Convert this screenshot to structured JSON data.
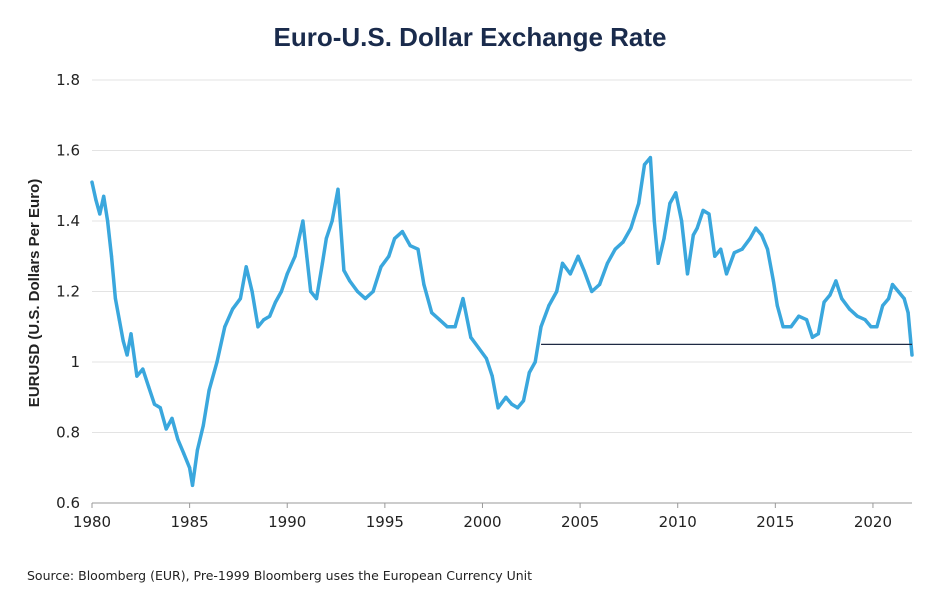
{
  "chart_data": {
    "type": "line",
    "title": "Euro-U.S. Dollar Exchange Rate",
    "ylabel": "EURUSD (U.S. Dollars Per Euro)",
    "xlabel": "",
    "xlim": [
      1980,
      2022
    ],
    "ylim": [
      0.6,
      1.8
    ],
    "xticks": [
      "1980",
      "1985",
      "1990",
      "1995",
      "2000",
      "2005",
      "2010",
      "2015",
      "2020"
    ],
    "yticks": [
      "0.6",
      "0.8",
      "1",
      "1.2",
      "1.4",
      "1.6",
      "1.8"
    ],
    "grid": "horizontal",
    "series": [
      {
        "color": "#3aa7dd",
        "x": [
          1980.0,
          1980.2,
          1980.4,
          1980.6,
          1980.8,
          1981.0,
          1981.2,
          1981.4,
          1981.6,
          1981.8,
          1982.0,
          1982.3,
          1982.6,
          1982.9,
          1983.2,
          1983.5,
          1983.8,
          1984.1,
          1984.4,
          1984.7,
          1985.0,
          1985.15,
          1985.4,
          1985.7,
          1986.0,
          1986.4,
          1986.8,
          1987.2,
          1987.6,
          1987.9,
          1988.2,
          1988.5,
          1988.8,
          1989.1,
          1989.4,
          1989.7,
          1990.0,
          1990.4,
          1990.8,
          1991.0,
          1991.2,
          1991.5,
          1991.8,
          1992.0,
          1992.3,
          1992.6,
          1992.9,
          1993.2,
          1993.6,
          1994.0,
          1994.4,
          1994.8,
          1995.2,
          1995.5,
          1995.9,
          1996.3,
          1996.7,
          1997.0,
          1997.4,
          1997.8,
          1998.2,
          1998.6,
          1999.0,
          1999.4,
          1999.8,
          2000.2,
          2000.5,
          2000.8,
          2001.2,
          2001.5,
          2001.8,
          2002.1,
          2002.4,
          2002.7,
          2003.0,
          2003.4,
          2003.8,
          2004.1,
          2004.5,
          2004.9,
          2005.2,
          2005.6,
          2006.0,
          2006.4,
          2006.8,
          2007.2,
          2007.6,
          2008.0,
          2008.3,
          2008.6,
          2008.8,
          2009.0,
          2009.3,
          2009.6,
          2009.9,
          2010.2,
          2010.5,
          2010.8,
          2011.0,
          2011.3,
          2011.6,
          2011.9,
          2012.2,
          2012.5,
          2012.9,
          2013.3,
          2013.7,
          2014.0,
          2014.3,
          2014.6,
          2014.9,
          2015.1,
          2015.4,
          2015.8,
          2016.2,
          2016.6,
          2016.9,
          2017.2,
          2017.5,
          2017.8,
          2018.1,
          2018.4,
          2018.8,
          2019.2,
          2019.6,
          2019.9,
          2020.2,
          2020.5,
          2020.8,
          2021.0,
          2021.3,
          2021.6,
          2021.8,
          2022.0
        ],
        "y": [
          1.51,
          1.46,
          1.42,
          1.47,
          1.4,
          1.3,
          1.18,
          1.12,
          1.06,
          1.02,
          1.08,
          0.96,
          0.98,
          0.93,
          0.88,
          0.87,
          0.81,
          0.84,
          0.78,
          0.74,
          0.7,
          0.65,
          0.75,
          0.82,
          0.92,
          1.0,
          1.1,
          1.15,
          1.18,
          1.27,
          1.2,
          1.1,
          1.12,
          1.13,
          1.17,
          1.2,
          1.25,
          1.3,
          1.4,
          1.3,
          1.2,
          1.18,
          1.28,
          1.35,
          1.4,
          1.49,
          1.26,
          1.23,
          1.2,
          1.18,
          1.2,
          1.27,
          1.3,
          1.35,
          1.37,
          1.33,
          1.32,
          1.22,
          1.14,
          1.12,
          1.1,
          1.1,
          1.18,
          1.07,
          1.04,
          1.01,
          0.96,
          0.87,
          0.9,
          0.88,
          0.87,
          0.89,
          0.97,
          1.0,
          1.1,
          1.16,
          1.2,
          1.28,
          1.25,
          1.3,
          1.26,
          1.2,
          1.22,
          1.28,
          1.32,
          1.34,
          1.38,
          1.45,
          1.56,
          1.58,
          1.4,
          1.28,
          1.35,
          1.45,
          1.48,
          1.4,
          1.25,
          1.36,
          1.38,
          1.43,
          1.42,
          1.3,
          1.32,
          1.25,
          1.31,
          1.32,
          1.35,
          1.38,
          1.36,
          1.32,
          1.23,
          1.16,
          1.1,
          1.1,
          1.13,
          1.12,
          1.07,
          1.08,
          1.17,
          1.19,
          1.23,
          1.18,
          1.15,
          1.13,
          1.12,
          1.1,
          1.1,
          1.16,
          1.18,
          1.22,
          1.2,
          1.18,
          1.14,
          1.02
        ],
        "reference_line": {
          "y": 1.05,
          "x_start": 2003.0,
          "x_end": 2022.0,
          "color": "#1f2a44"
        }
      }
    ]
  },
  "footer": {
    "source": "Source: Bloomberg (EUR), Pre-1999 Bloomberg uses the European Currency Unit"
  }
}
